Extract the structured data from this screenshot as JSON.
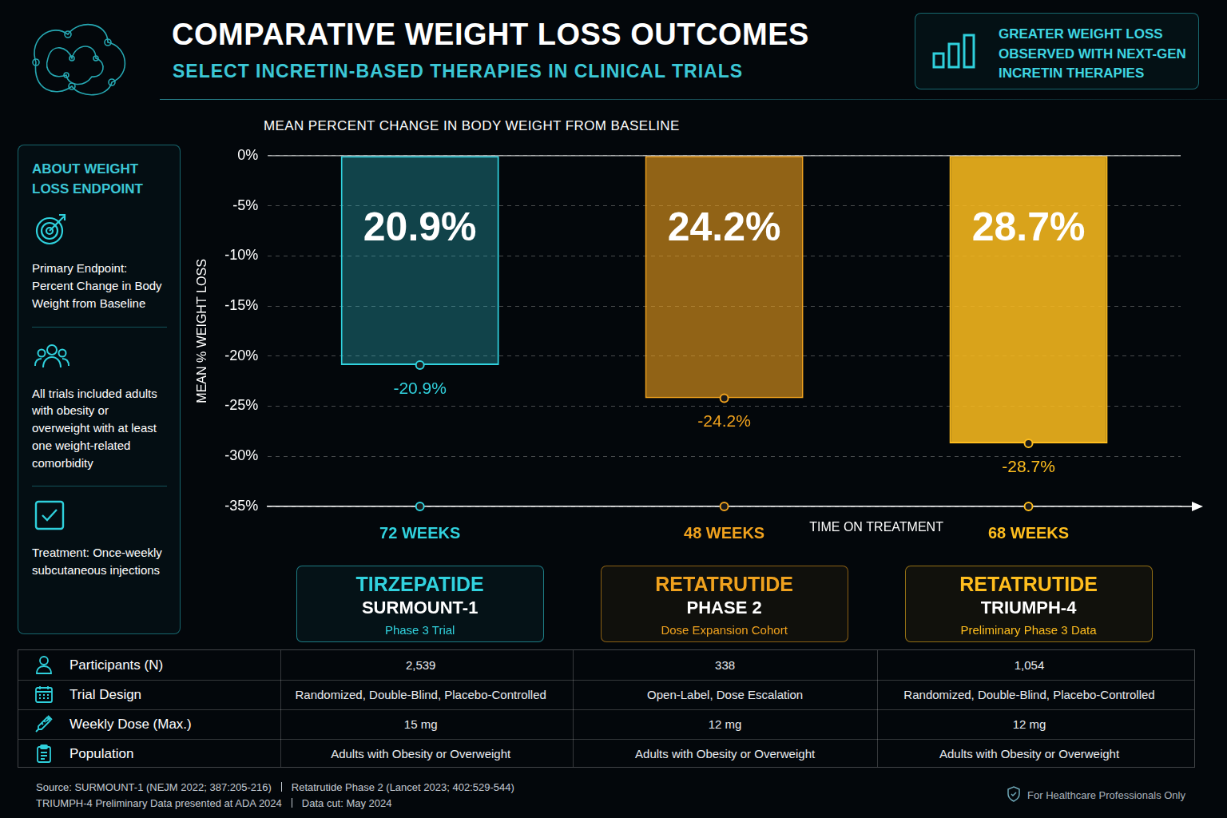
{
  "header": {
    "title": "COMPARATIVE WEIGHT LOSS OUTCOMES",
    "subtitle": "SELECT INCRETIN-BASED THERAPIES IN CLINICAL TRIALS",
    "callout": "GREATER WEIGHT LOSS OBSERVED WITH NEXT-GEN INCRETIN THERAPIES"
  },
  "sidebar": {
    "title": "ABOUT WEIGHT LOSS ENDPOINT",
    "items": [
      "Primary Endpoint: Percent Change in Body Weight from Baseline",
      "All trials included adults with obesity or overweight with at least one weight-related comorbidity",
      "Treatment: Once-weekly subcutaneous injections"
    ]
  },
  "chart_data": {
    "type": "bar",
    "title": "MEAN PERCENT CHANGE IN BODY WEIGHT FROM BASELINE",
    "y_label": "MEAN % WEIGHT LOSS",
    "x_label": "TIME ON TREATMENT",
    "categories": [
      "72 WEEKS",
      "48 WEEKS",
      "68 WEEKS"
    ],
    "values": [
      -20.9,
      -24.2,
      -28.7
    ],
    "value_labels": [
      "-20.9%",
      "-24.2%",
      "-28.7%"
    ],
    "bar_texts": [
      "20.9%",
      "24.2%",
      "28.7%"
    ],
    "colors": [
      "#31d2de",
      "#f0a21e",
      "#ffbe1e"
    ],
    "ylim": [
      -35,
      0
    ],
    "yticks": [
      {
        "value": -35,
        "label": "-35%"
      },
      {
        "value": -30,
        "label": "-30%"
      },
      {
        "value": -25,
        "label": "-25%"
      },
      {
        "value": -20,
        "label": "-20%"
      },
      {
        "value": -15,
        "label": "-15%"
      },
      {
        "value": -10,
        "label": "-10%"
      },
      {
        "value": -5,
        "label": "-5%"
      },
      {
        "value": 0,
        "label": "0%"
      }
    ],
    "grid": true,
    "data_labels": true
  },
  "trials": [
    {
      "drug": "TIRZEPATIDE",
      "name": "SURMOUNT-1",
      "phase": "Phase 3 Trial"
    },
    {
      "drug": "RETATRUTIDE",
      "name": "PHASE 2",
      "phase": "Dose Expansion Cohort"
    },
    {
      "drug": "RETATRUTIDE",
      "name": "TRIUMPH-4",
      "phase": "Preliminary Phase 3 Data"
    }
  ],
  "table": {
    "rows": [
      {
        "label": "Participants (N)",
        "values": [
          "2,539",
          "338",
          "1,054"
        ]
      },
      {
        "label": "Trial Design",
        "values": [
          "Randomized, Double-Blind, Placebo-Controlled",
          "Open-Label, Dose Escalation",
          "Randomized, Double-Blind, Placebo-Controlled"
        ]
      },
      {
        "label": "Weekly Dose (Max.)",
        "values": [
          "15 mg",
          "12 mg",
          "12 mg"
        ]
      },
      {
        "label": "Population",
        "values": [
          "Adults with Obesity or Overweight",
          "Adults with Obesity or Overweight",
          "Adults with Obesity or Overweight"
        ]
      }
    ]
  },
  "footer": {
    "sources": [
      [
        "Source: SURMOUNT-1 (NEJM 2022; 387:205-216)",
        "Retatrutide Phase 2 (Lancet 2023; 402:529-544)"
      ],
      [
        "TRIUMPH-4 Preliminary Data presented at ADA 2024",
        "Data cut: May 2024"
      ]
    ],
    "notice": "For Healthcare Professionals Only"
  }
}
